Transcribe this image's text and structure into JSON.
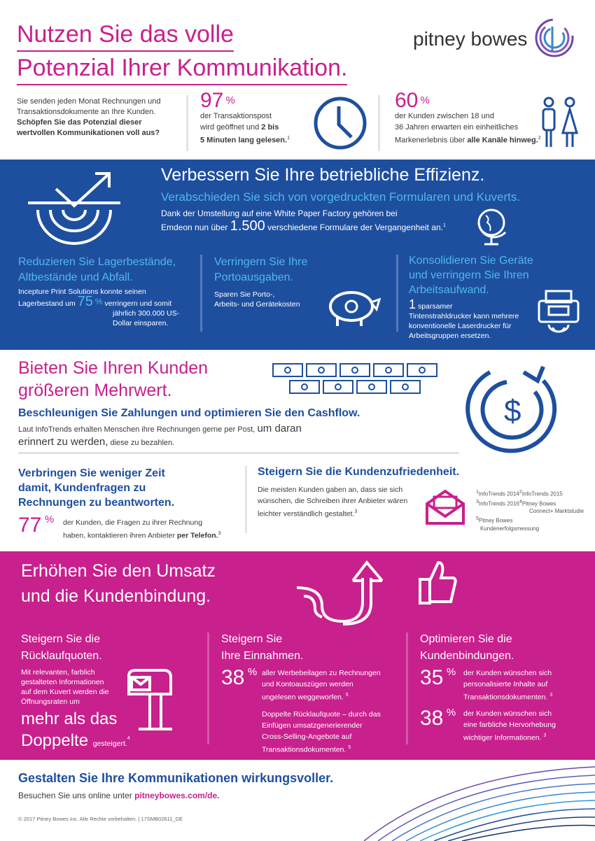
{
  "header": {
    "title_line1": "Nutzen Sie das volle",
    "title_line2": "Potenzial Ihrer Kommunikation.",
    "logo_text": "pitney bowes"
  },
  "intro": {
    "text": "Sie senden jeden Monat Rechnungen und Transaktionsdokumente an Ihre Kunden.",
    "bold": "Schöpfen Sie das Potenzial dieser wertvollen Kommunikationen voll aus?"
  },
  "stat1": {
    "value": "97",
    "sign": "%",
    "line1": "der Transaktionspost",
    "line2a": "wird geöffnet und",
    "line2b": "2 bis",
    "line3": "5 Minuten lang gelesen.",
    "ref": "1"
  },
  "stat2": {
    "value": "60",
    "sign": "%",
    "line1": "der Kunden zwischen 18 und",
    "line2": "36 Jahren erwarten ein einheitliches",
    "line3a": "Markenerlebnis über",
    "line3b": "alle Kanäle hinweg.",
    "ref": "2"
  },
  "efficiency": {
    "title": "Verbessern Sie Ihre betriebliche Effizienz.",
    "subtitle": "Verabschieden Sie sich von vorgedruckten Formularen und Kuverts.",
    "text1": "Dank der Umstellung auf eine White Paper Factory gehören bei",
    "text2a": "Emdeon nun über",
    "text2b": "1.500",
    "text2c": "verschiedene Formulare der Vergangenheit an.",
    "ref": "1",
    "col1_title1": "Reduzieren Sie Lagerbestände,",
    "col1_title2": "Altbestände und Abfall.",
    "col1_text1": "Incepture Print Solutions konnte seinen",
    "col1_text2a": "Lagerbestand um",
    "col1_pct": "75",
    "col1_sign": "%",
    "col1_text2b": "verringern und somit",
    "col1_text3": "jährlich 300.000 US-",
    "col1_text4": "Dollar einsparen.",
    "col2_title1": "Verringern Sie Ihre",
    "col2_title2": "Portoausgaben.",
    "col2_text1": "Sparen Sie Porto-,",
    "col2_text2": "Arbeits- und Gerätekosten",
    "col3_title1": "Konsolidieren Sie Geräte",
    "col3_title2": "und verringern Sie Ihren",
    "col3_title3": "Arbeitsaufwand.",
    "col3_num": "1",
    "col3_text1": "sparsamer",
    "col3_text2": "Tintenstrahldrucker kann mehrere",
    "col3_text3": "konventionelle Laserdrucker für",
    "col3_text4": "Arbeitsgruppen ersetzen."
  },
  "value": {
    "title1": "Bieten Sie Ihren Kunden",
    "title2": "größeren Mehrwert.",
    "subtitle": "Beschleunigen Sie Zahlungen und optimieren Sie den Cashflow.",
    "text1a": "Laut InfoTrends erhalten Menschen ihre Rechnungen gerne per Post,",
    "text1b": "um daran",
    "text2a": "erinnert zu werden,",
    "text2b": "diese zu bezahlen.",
    "left_title1": "Verbringen Sie weniger Zeit",
    "left_title2": "damit, Kundenfragen zu",
    "left_title3": "Rechnungen zu beantworten.",
    "left_pct": "77",
    "left_sign": "%",
    "left_text1": "der Kunden, die Fragen zu ihrer Rechnung",
    "left_text2a": "haben, kontaktieren ihren Anbieter",
    "left_text2b": "per Telefon.",
    "left_ref": "3",
    "right_title": "Steigern Sie die Kundenzufriedenheit.",
    "right_text1": "Die meisten Kunden gaben an, dass sie sich",
    "right_text2": "wünschen, die Schreiben ihrer Anbieter wären",
    "right_text3": "leichter verständlich gestaltet.",
    "right_ref": "3",
    "fn1": "InfoTrends 2014",
    "fn2": "InfoTrends 2015",
    "fn3": "InfoTrends 2016",
    "fn4a": "Pitney Bowes",
    "fn4b": "Connect+ Marktstudie",
    "fn5a": "Pitney Bowes",
    "fn5b": "Kundenerfolgsmessung"
  },
  "revenue": {
    "title1": "Erhöhen Sie den Umsatz",
    "title2": "und die Kundenbindung.",
    "c1_title1": "Steigern Sie die",
    "c1_title2": "Rücklaufquoten.",
    "c1_text1": "Mit relevanten, farblich",
    "c1_text2": "gestalteten Informationen",
    "c1_text3": "auf dem Kuvert werden die",
    "c1_text4": "Öffnungsraten um",
    "c1_big1": "mehr als das",
    "c1_big2": "Doppelte",
    "c1_tail": "gesteigert.",
    "c1_ref": "4",
    "c2_title1": "Steigern Sie",
    "c2_title2": "Ihre Einnahmen.",
    "c2_pct": "38",
    "c2_sign": "%",
    "c2_text1": "aller Werbebeilagen zu Rechnungen",
    "c2_text2": "und Kontoauszügen werden",
    "c2_text3": "ungelesen weggeworfen.",
    "c2_ref1": "5",
    "c2_text4": "Doppelte Rücklaufquote – durch das",
    "c2_text5": "Einfügen umsatzgenerierender",
    "c2_text6": "Cross-Selling-Angebote auf",
    "c2_text7": "Transaktionsdokumenten.",
    "c2_ref2": "5",
    "c3_title1": "Optimieren Sie die",
    "c3_title2": "Kundenbindungen.",
    "c3_pct1": "35",
    "c3_sign1": "%",
    "c3_text1": "der Kunden wünschen sich",
    "c3_text2": "personalisierte Inhalte auf",
    "c3_text3": "Transaktionsdokumenten.",
    "c3_ref1": "3",
    "c3_pct2": "38",
    "c3_sign2": "%",
    "c3_text4": "der Kunden wünschen sich",
    "c3_text5": "eine farbliche Hervorhebung",
    "c3_text6": "wichtiger Informationen.",
    "c3_ref2": "3"
  },
  "footer": {
    "title": "Gestalten Sie Ihre Kommunikationen wirkungsvoller.",
    "visit": "Besuchen Sie uns online unter",
    "link": "pitneybowes.com/de.",
    "copyright": "© 2017 Pitney Bowes Inc. Alle Rechte vorbehalten.  |  17SMB02611_DE"
  },
  "colors": {
    "magenta": "#c8208d",
    "blue": "#1e4f9f",
    "light_blue": "#4fb8ea"
  }
}
